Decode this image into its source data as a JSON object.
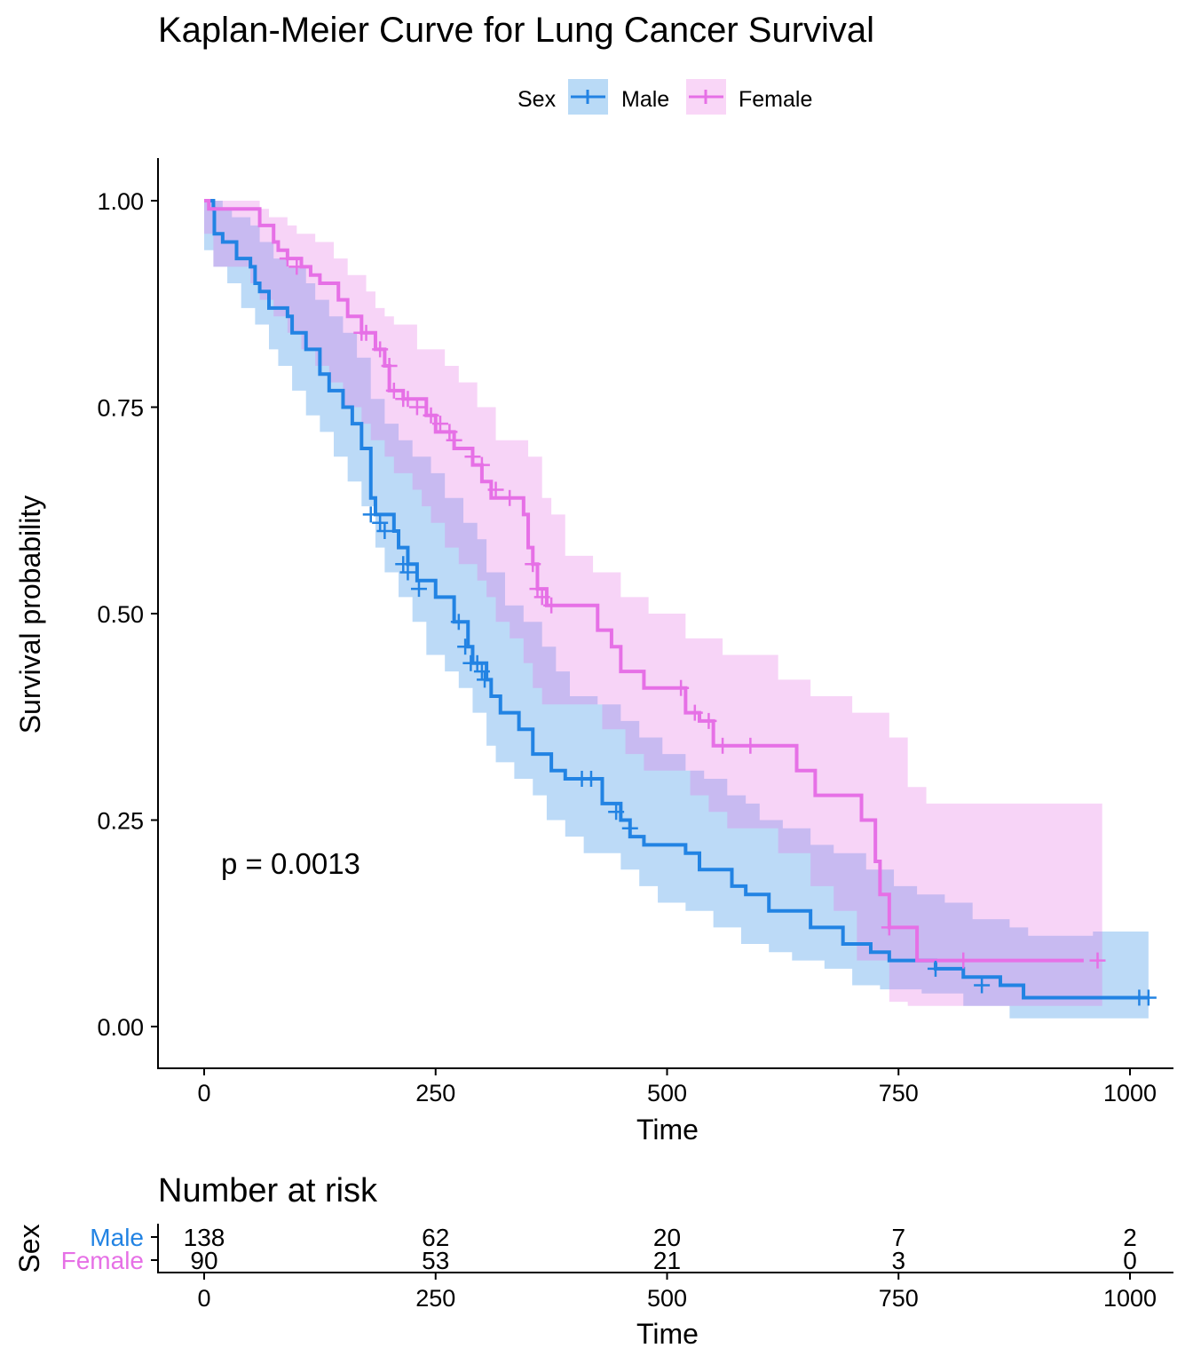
{
  "chart_data": {
    "type": "line",
    "title": "Kaplan-Meier Curve for Lung Cancer Survival",
    "xlabel": "Time",
    "ylabel": "Survival probability",
    "xlim": [
      -50,
      1050
    ],
    "ylim": [
      -0.05,
      1.05
    ],
    "xticks": [
      0,
      250,
      500,
      750,
      1000
    ],
    "yticks": [
      0.0,
      0.25,
      0.5,
      0.75,
      1.0
    ],
    "ytick_labels": [
      "0.00",
      "0.25",
      "0.50",
      "0.75",
      "1.00"
    ],
    "xtick_labels": [
      "0",
      "250",
      "500",
      "750",
      "1000"
    ],
    "grid": false,
    "legend": {
      "title": "Sex",
      "placement": "top"
    },
    "pvalue": "p = 0.0013",
    "series": [
      {
        "name": "Male",
        "color": "#2283E3",
        "fill": "#B9DAF6",
        "steps": [
          [
            0,
            1.0
          ],
          [
            10,
            0.99
          ],
          [
            11,
            0.96
          ],
          [
            20,
            0.95
          ],
          [
            35,
            0.93
          ],
          [
            50,
            0.92
          ],
          [
            55,
            0.9
          ],
          [
            60,
            0.89
          ],
          [
            70,
            0.87
          ],
          [
            90,
            0.86
          ],
          [
            95,
            0.84
          ],
          [
            110,
            0.82
          ],
          [
            125,
            0.79
          ],
          [
            135,
            0.77
          ],
          [
            150,
            0.75
          ],
          [
            160,
            0.73
          ],
          [
            170,
            0.7
          ],
          [
            180,
            0.64
          ],
          [
            185,
            0.62
          ],
          [
            205,
            0.6
          ],
          [
            210,
            0.58
          ],
          [
            220,
            0.56
          ],
          [
            230,
            0.54
          ],
          [
            250,
            0.52
          ],
          [
            270,
            0.49
          ],
          [
            285,
            0.46
          ],
          [
            290,
            0.44
          ],
          [
            305,
            0.42
          ],
          [
            310,
            0.4
          ],
          [
            320,
            0.38
          ],
          [
            340,
            0.36
          ],
          [
            355,
            0.33
          ],
          [
            375,
            0.31
          ],
          [
            390,
            0.3
          ],
          [
            430,
            0.27
          ],
          [
            450,
            0.25
          ],
          [
            460,
            0.23
          ],
          [
            475,
            0.22
          ],
          [
            520,
            0.21
          ],
          [
            535,
            0.19
          ],
          [
            570,
            0.17
          ],
          [
            585,
            0.16
          ],
          [
            610,
            0.14
          ],
          [
            655,
            0.12
          ],
          [
            690,
            0.1
          ],
          [
            720,
            0.09
          ],
          [
            740,
            0.08
          ],
          [
            790,
            0.07
          ],
          [
            820,
            0.06
          ],
          [
            860,
            0.05
          ],
          [
            885,
            0.035
          ],
          [
            1020,
            0.035
          ]
        ],
        "upper": [
          [
            0,
            1.0
          ],
          [
            20,
            0.99
          ],
          [
            30,
            0.98
          ],
          [
            50,
            0.97
          ],
          [
            60,
            0.95
          ],
          [
            75,
            0.93
          ],
          [
            90,
            0.92
          ],
          [
            110,
            0.9
          ],
          [
            120,
            0.88
          ],
          [
            135,
            0.86
          ],
          [
            150,
            0.84
          ],
          [
            165,
            0.81
          ],
          [
            180,
            0.76
          ],
          [
            195,
            0.73
          ],
          [
            210,
            0.71
          ],
          [
            225,
            0.69
          ],
          [
            245,
            0.67
          ],
          [
            260,
            0.64
          ],
          [
            280,
            0.61
          ],
          [
            295,
            0.59
          ],
          [
            305,
            0.55
          ],
          [
            325,
            0.51
          ],
          [
            345,
            0.49
          ],
          [
            365,
            0.46
          ],
          [
            380,
            0.43
          ],
          [
            395,
            0.4
          ],
          [
            425,
            0.39
          ],
          [
            450,
            0.37
          ],
          [
            470,
            0.35
          ],
          [
            495,
            0.33
          ],
          [
            520,
            0.31
          ],
          [
            540,
            0.3
          ],
          [
            565,
            0.28
          ],
          [
            585,
            0.27
          ],
          [
            600,
            0.25
          ],
          [
            625,
            0.24
          ],
          [
            655,
            0.22
          ],
          [
            680,
            0.21
          ],
          [
            715,
            0.19
          ],
          [
            745,
            0.17
          ],
          [
            770,
            0.16
          ],
          [
            800,
            0.15
          ],
          [
            830,
            0.13
          ],
          [
            870,
            0.12
          ],
          [
            890,
            0.11
          ],
          [
            960,
            0.115
          ],
          [
            1020,
            0.115
          ]
        ],
        "lower": [
          [
            0,
            0.98
          ],
          [
            10,
            0.94
          ],
          [
            25,
            0.92
          ],
          [
            40,
            0.9
          ],
          [
            55,
            0.87
          ],
          [
            70,
            0.85
          ],
          [
            80,
            0.82
          ],
          [
            95,
            0.8
          ],
          [
            110,
            0.77
          ],
          [
            125,
            0.74
          ],
          [
            140,
            0.72
          ],
          [
            155,
            0.69
          ],
          [
            170,
            0.66
          ],
          [
            185,
            0.63
          ],
          [
            195,
            0.58
          ],
          [
            210,
            0.55
          ],
          [
            225,
            0.52
          ],
          [
            240,
            0.49
          ],
          [
            260,
            0.45
          ],
          [
            275,
            0.43
          ],
          [
            290,
            0.41
          ],
          [
            305,
            0.38
          ],
          [
            315,
            0.34
          ],
          [
            335,
            0.32
          ],
          [
            355,
            0.3
          ],
          [
            370,
            0.28
          ],
          [
            390,
            0.25
          ],
          [
            410,
            0.23
          ],
          [
            450,
            0.21
          ],
          [
            470,
            0.19
          ],
          [
            490,
            0.17
          ],
          [
            520,
            0.15
          ],
          [
            550,
            0.14
          ],
          [
            580,
            0.12
          ],
          [
            610,
            0.1
          ],
          [
            635,
            0.09
          ],
          [
            670,
            0.08
          ],
          [
            700,
            0.07
          ],
          [
            730,
            0.05
          ],
          [
            775,
            0.045
          ],
          [
            820,
            0.04
          ],
          [
            870,
            0.025
          ],
          [
            885,
            0.01
          ],
          [
            1020,
            0.01
          ]
        ],
        "censor": [
          [
            180,
            0.62
          ],
          [
            190,
            0.61
          ],
          [
            195,
            0.6
          ],
          [
            215,
            0.56
          ],
          [
            220,
            0.55
          ],
          [
            232,
            0.53
          ],
          [
            275,
            0.49
          ],
          [
            282,
            0.46
          ],
          [
            288,
            0.44
          ],
          [
            295,
            0.44
          ],
          [
            300,
            0.43
          ],
          [
            303,
            0.42
          ],
          [
            408,
            0.3
          ],
          [
            418,
            0.3
          ],
          [
            445,
            0.26
          ],
          [
            460,
            0.24
          ],
          [
            790,
            0.07
          ],
          [
            840,
            0.05
          ],
          [
            1010,
            0.035
          ],
          [
            1020,
            0.035
          ]
        ]
      },
      {
        "name": "Female",
        "color": "#E670E6",
        "fill": "#F9D6F7",
        "steps": [
          [
            0,
            1.0
          ],
          [
            5,
            0.99
          ],
          [
            60,
            0.97
          ],
          [
            75,
            0.95
          ],
          [
            80,
            0.94
          ],
          [
            90,
            0.93
          ],
          [
            105,
            0.92
          ],
          [
            115,
            0.91
          ],
          [
            125,
            0.9
          ],
          [
            145,
            0.88
          ],
          [
            155,
            0.86
          ],
          [
            170,
            0.84
          ],
          [
            185,
            0.82
          ],
          [
            195,
            0.8
          ],
          [
            200,
            0.77
          ],
          [
            215,
            0.76
          ],
          [
            240,
            0.74
          ],
          [
            250,
            0.72
          ],
          [
            270,
            0.7
          ],
          [
            290,
            0.68
          ],
          [
            300,
            0.66
          ],
          [
            310,
            0.64
          ],
          [
            345,
            0.62
          ],
          [
            350,
            0.58
          ],
          [
            355,
            0.56
          ],
          [
            360,
            0.53
          ],
          [
            370,
            0.51
          ],
          [
            425,
            0.48
          ],
          [
            440,
            0.46
          ],
          [
            450,
            0.43
          ],
          [
            475,
            0.41
          ],
          [
            520,
            0.38
          ],
          [
            535,
            0.37
          ],
          [
            550,
            0.34
          ],
          [
            640,
            0.31
          ],
          [
            660,
            0.28
          ],
          [
            710,
            0.25
          ],
          [
            725,
            0.2
          ],
          [
            730,
            0.16
          ],
          [
            740,
            0.12
          ],
          [
            770,
            0.08
          ],
          [
            950,
            0.08
          ]
        ],
        "upper": [
          [
            0,
            1.0
          ],
          [
            60,
            0.99
          ],
          [
            70,
            0.98
          ],
          [
            90,
            0.97
          ],
          [
            100,
            0.96
          ],
          [
            120,
            0.95
          ],
          [
            140,
            0.93
          ],
          [
            155,
            0.91
          ],
          [
            175,
            0.89
          ],
          [
            185,
            0.87
          ],
          [
            195,
            0.86
          ],
          [
            205,
            0.85
          ],
          [
            230,
            0.82
          ],
          [
            260,
            0.8
          ],
          [
            275,
            0.78
          ],
          [
            295,
            0.75
          ],
          [
            315,
            0.71
          ],
          [
            350,
            0.69
          ],
          [
            365,
            0.64
          ],
          [
            375,
            0.62
          ],
          [
            390,
            0.57
          ],
          [
            420,
            0.55
          ],
          [
            450,
            0.52
          ],
          [
            480,
            0.5
          ],
          [
            520,
            0.47
          ],
          [
            560,
            0.45
          ],
          [
            620,
            0.42
          ],
          [
            655,
            0.4
          ],
          [
            700,
            0.38
          ],
          [
            740,
            0.35
          ],
          [
            760,
            0.29
          ],
          [
            780,
            0.27
          ],
          [
            970,
            0.27
          ]
        ],
        "lower": [
          [
            0,
            0.98
          ],
          [
            10,
            0.96
          ],
          [
            50,
            0.92
          ],
          [
            60,
            0.9
          ],
          [
            75,
            0.88
          ],
          [
            90,
            0.86
          ],
          [
            105,
            0.84
          ],
          [
            120,
            0.82
          ],
          [
            135,
            0.8
          ],
          [
            150,
            0.78
          ],
          [
            170,
            0.75
          ],
          [
            180,
            0.73
          ],
          [
            195,
            0.71
          ],
          [
            205,
            0.69
          ],
          [
            225,
            0.67
          ],
          [
            235,
            0.65
          ],
          [
            245,
            0.63
          ],
          [
            260,
            0.61
          ],
          [
            275,
            0.58
          ],
          [
            295,
            0.56
          ],
          [
            305,
            0.54
          ],
          [
            315,
            0.52
          ],
          [
            330,
            0.49
          ],
          [
            345,
            0.47
          ],
          [
            355,
            0.44
          ],
          [
            365,
            0.41
          ],
          [
            430,
            0.39
          ],
          [
            455,
            0.36
          ],
          [
            475,
            0.33
          ],
          [
            525,
            0.31
          ],
          [
            545,
            0.28
          ],
          [
            565,
            0.26
          ],
          [
            620,
            0.24
          ],
          [
            655,
            0.21
          ],
          [
            680,
            0.17
          ],
          [
            705,
            0.14
          ],
          [
            740,
            0.08
          ],
          [
            760,
            0.03
          ],
          [
            800,
            0.025
          ],
          [
            970,
            0.025
          ]
        ],
        "censor": [
          [
            90,
            0.93
          ],
          [
            100,
            0.92
          ],
          [
            170,
            0.84
          ],
          [
            175,
            0.84
          ],
          [
            190,
            0.82
          ],
          [
            200,
            0.8
          ],
          [
            205,
            0.77
          ],
          [
            215,
            0.76
          ],
          [
            220,
            0.76
          ],
          [
            230,
            0.75
          ],
          [
            245,
            0.74
          ],
          [
            255,
            0.73
          ],
          [
            265,
            0.72
          ],
          [
            270,
            0.71
          ],
          [
            290,
            0.69
          ],
          [
            300,
            0.68
          ],
          [
            315,
            0.65
          ],
          [
            330,
            0.64
          ],
          [
            355,
            0.56
          ],
          [
            360,
            0.53
          ],
          [
            365,
            0.52
          ],
          [
            375,
            0.51
          ],
          [
            515,
            0.41
          ],
          [
            530,
            0.38
          ],
          [
            545,
            0.37
          ],
          [
            560,
            0.34
          ],
          [
            590,
            0.34
          ],
          [
            740,
            0.12
          ],
          [
            820,
            0.08
          ],
          [
            965,
            0.08
          ]
        ]
      }
    ],
    "risk_table": {
      "title": "Number at risk",
      "ylabel": "Sex",
      "xlabel": "Time",
      "times": [
        0,
        250,
        500,
        750,
        1000
      ],
      "xtick_labels": [
        "0",
        "250",
        "500",
        "750",
        "1000"
      ],
      "rows": [
        {
          "name": "Male",
          "color": "#2283E3",
          "counts": [
            "138",
            "62",
            "20",
            "7",
            "2"
          ]
        },
        {
          "name": "Female",
          "color": "#E670E6",
          "counts": [
            "90",
            "53",
            "21",
            "3",
            "0"
          ]
        }
      ]
    }
  }
}
